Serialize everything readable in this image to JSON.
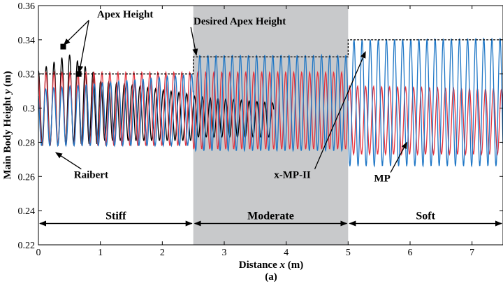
{
  "chart_data": {
    "type": "line",
    "caption": "(a)",
    "xlabel_prefix": "Distance ",
    "xlabel_var": "x",
    "xlabel_suffix": " (m)",
    "ylabel_prefix": "Main Body Height ",
    "ylabel_var": "y",
    "ylabel_suffix": " (m)",
    "xlim": [
      0,
      7.5
    ],
    "ylim": [
      0.22,
      0.36
    ],
    "xticks": [
      0,
      1,
      2,
      3,
      4,
      5,
      6,
      7
    ],
    "yticks": [
      0.22,
      0.24,
      0.26,
      0.28,
      0.3,
      0.32,
      0.34,
      0.36
    ],
    "ytick_labels": [
      "0.22",
      "0.24",
      "0.26",
      "0.28",
      "0.3",
      "0.32",
      "0.34",
      "0.36"
    ],
    "shaded_region": {
      "x": [
        2.5,
        5.0
      ],
      "color": "#c8c9cb"
    },
    "regions": [
      {
        "label": "Stiff",
        "x": [
          0,
          2.5
        ]
      },
      {
        "label": "Moderate",
        "x": [
          2.5,
          5.0
        ]
      },
      {
        "label": "Soft",
        "x": [
          5.0,
          7.5
        ]
      }
    ],
    "region_arrow_y": 0.2325,
    "desired_apex": [
      {
        "x": [
          0,
          2.5
        ],
        "y": 0.32
      },
      {
        "x": [
          2.5,
          5.0
        ],
        "y": 0.33
      },
      {
        "x": [
          5.0,
          7.5
        ],
        "y": 0.34
      }
    ],
    "series": [
      {
        "name": "Raibert",
        "color": "#000000",
        "period": 0.126,
        "phase": 0.0,
        "segments": [
          {
            "x": [
              0.0,
              0.4
            ],
            "min": 0.278,
            "max_start": 0.322,
            "max_end": 0.33
          },
          {
            "x": [
              0.4,
              1.0
            ],
            "min": 0.279,
            "max_start": 0.334,
            "max_end": 0.318
          },
          {
            "x": [
              1.0,
              2.5
            ],
            "min": 0.281,
            "max_start": 0.316,
            "max_end": 0.308
          },
          {
            "x": [
              2.5,
              3.8
            ],
            "min": 0.283,
            "max_start": 0.307,
            "max_end": 0.303
          }
        ]
      },
      {
        "name": "MP",
        "color": "#e5343f",
        "period": 0.129,
        "phase": 0.35,
        "segments": [
          {
            "x": [
              0.0,
              2.5
            ],
            "min": 0.278,
            "max_start": 0.321,
            "max_end": 0.321
          },
          {
            "x": [
              2.5,
              5.0
            ],
            "min": 0.276,
            "max_start": 0.321,
            "max_end": 0.321
          },
          {
            "x": [
              5.0,
              7.5
            ],
            "min": 0.273,
            "max_start": 0.313,
            "max_end": 0.311
          }
        ]
      },
      {
        "name": "x-MP-II",
        "color": "#1f77c6",
        "period": 0.131,
        "phase": 0.7,
        "segments": [
          {
            "x": [
              0.0,
              2.5
            ],
            "min": 0.278,
            "max_start": 0.311,
            "max_end": 0.32
          },
          {
            "x": [
              2.5,
              5.0
            ],
            "min": 0.275,
            "max_start": 0.331,
            "max_end": 0.331
          },
          {
            "x": [
              5.0,
              7.5
            ],
            "min": 0.266,
            "max_start": 0.34,
            "max_end": 0.341
          }
        ]
      }
    ],
    "apex_markers": [
      {
        "x": 0.4,
        "y": 0.336
      },
      {
        "x": 0.65,
        "y": 0.32
      }
    ],
    "annotations": [
      {
        "id": "apex",
        "text": "Apex Height",
        "text_x": 1.4,
        "text_y": 0.353,
        "targets": [
          [
            0.41,
            0.337
          ],
          [
            0.66,
            0.321
          ]
        ]
      },
      {
        "id": "desired",
        "text": "Desired Apex Height",
        "text_x": 3.25,
        "text_y": 0.349,
        "targets": [
          [
            2.55,
            0.331
          ]
        ]
      },
      {
        "id": "raibert",
        "text": "Raibert",
        "text_x": 0.85,
        "text_y": 0.259,
        "targets": [
          [
            0.28,
            0.274
          ]
        ]
      },
      {
        "id": "xmp",
        "text": "x-MP-II",
        "text_x": 4.1,
        "text_y": 0.259,
        "targets": [
          [
            5.28,
            0.333
          ]
        ]
      },
      {
        "id": "mp",
        "text": "MP",
        "text_x": 5.55,
        "text_y": 0.257,
        "targets": [
          [
            5.95,
            0.28
          ]
        ]
      }
    ]
  }
}
